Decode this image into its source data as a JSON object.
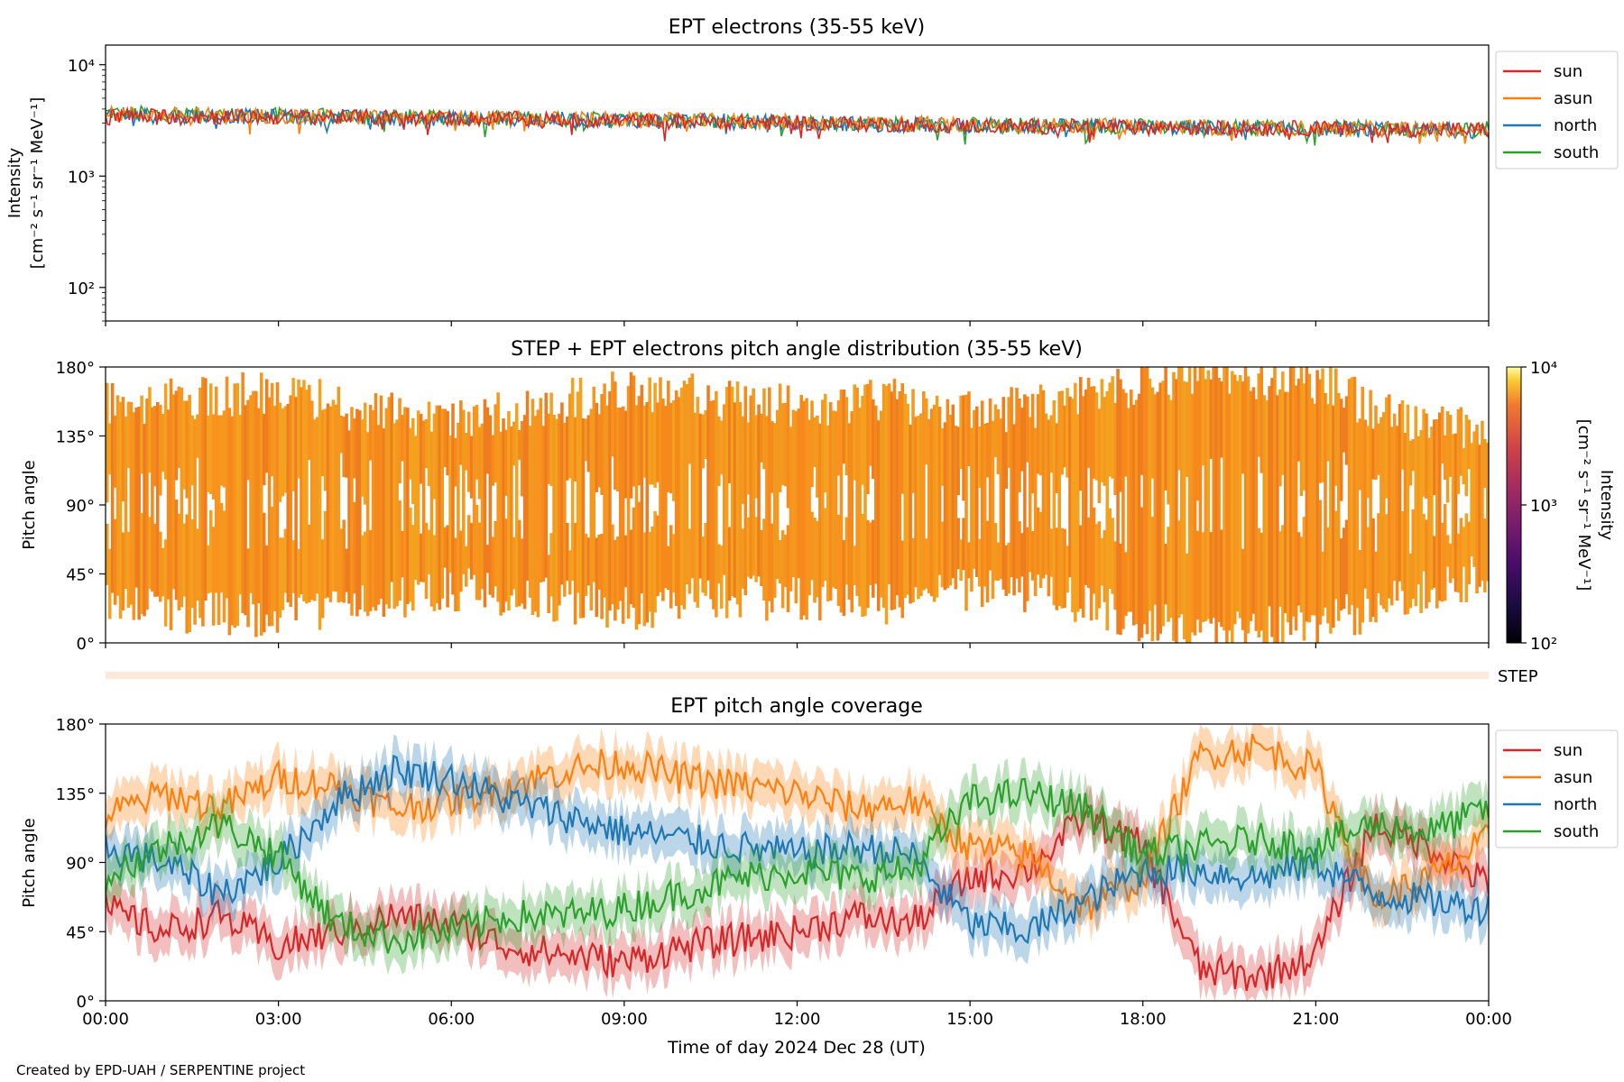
{
  "footer": "Created by EPD-UAH / SERPENTINE project",
  "colors": {
    "sun": "#d62728",
    "asun": "#ff7f0e",
    "north": "#1f77b4",
    "south": "#2ca02c",
    "pad": "#f7931e",
    "step_bar": "#fde8dc"
  },
  "chart_data": [
    {
      "type": "line",
      "title": "EPT electrons (35-55 keV)",
      "ylabel": [
        "Intensity",
        "[cm⁻² s⁻¹ sr⁻¹ MeV⁻¹]"
      ],
      "yscale": "log",
      "ylim": [
        50,
        15000
      ],
      "yticks": [
        100,
        1000,
        10000
      ],
      "ytick_labels": [
        "10²",
        "10³",
        "10⁴"
      ],
      "xlim_hours": [
        0,
        24
      ],
      "x_ticks_hours": [
        0,
        3,
        6,
        9,
        12,
        15,
        18,
        21,
        24
      ],
      "legend": "outside upper right",
      "series": [
        {
          "name": "sun",
          "x_hours": [
            0,
            2,
            4,
            6,
            8,
            10,
            12,
            14,
            16,
            18,
            20,
            22,
            24
          ],
          "values": [
            3500,
            3400,
            3400,
            3300,
            3200,
            3100,
            3000,
            2900,
            2800,
            2750,
            2700,
            2650,
            2600
          ]
        },
        {
          "name": "asun",
          "x_hours": [
            0,
            2,
            4,
            6,
            8,
            10,
            12,
            14,
            16,
            18,
            20,
            22,
            24
          ],
          "values": [
            3600,
            3500,
            3400,
            3300,
            3250,
            3150,
            3050,
            2950,
            2850,
            2800,
            2700,
            2650,
            2600
          ]
        },
        {
          "name": "north",
          "x_hours": [
            0,
            2,
            4,
            6,
            8,
            10,
            12,
            14,
            16,
            18,
            20,
            22,
            24
          ],
          "values": [
            3500,
            3450,
            3350,
            3300,
            3200,
            3150,
            3000,
            2900,
            2800,
            2750,
            2650,
            2600,
            2550
          ]
        },
        {
          "name": "south",
          "x_hours": [
            0,
            2,
            4,
            6,
            8,
            10,
            12,
            14,
            16,
            18,
            20,
            22,
            24
          ],
          "values": [
            3700,
            3550,
            3450,
            3350,
            3250,
            3150,
            3050,
            2950,
            2850,
            2800,
            2750,
            2700,
            2650
          ]
        }
      ]
    },
    {
      "type": "heatmap",
      "title": "STEP + EPT electrons pitch angle distribution (35-55 keV)",
      "ylabel": "Pitch angle",
      "ylim": [
        0,
        180
      ],
      "ytick_labels": [
        "0°",
        "45°",
        "90°",
        "135°",
        "180°"
      ],
      "xlim_hours": [
        0,
        24
      ],
      "colorbar": {
        "label": [
          "Intensity",
          "[cm⁻² s⁻¹ sr⁻¹ MeV⁻¹]"
        ],
        "scale": "log",
        "range": [
          100,
          10000
        ],
        "tick_labels": [
          "10²",
          "10³",
          "10⁴"
        ]
      },
      "coverage_hours": [
        0,
        1.5,
        3,
        4.5,
        6,
        7.5,
        9,
        10.5,
        12,
        13.5,
        15,
        16.5,
        18,
        19.5,
        21,
        22.5,
        24
      ],
      "coverage_min_deg": [
        25,
        20,
        18,
        28,
        35,
        30,
        22,
        30,
        28,
        25,
        35,
        30,
        15,
        8,
        10,
        30,
        45
      ],
      "coverage_max_deg": [
        155,
        160,
        165,
        150,
        145,
        155,
        165,
        160,
        155,
        160,
        150,
        155,
        170,
        175,
        170,
        145,
        140
      ],
      "typical_intensity": 3000,
      "step_strip_label": "STEP"
    },
    {
      "type": "line",
      "title": "EPT pitch angle coverage",
      "ylabel": "Pitch angle",
      "xlabel": "Time of day 2024 Dec 28 (UT)",
      "ylim": [
        0,
        180
      ],
      "ytick_labels": [
        "0°",
        "45°",
        "90°",
        "135°",
        "180°"
      ],
      "xlim_hours": [
        0,
        24
      ],
      "x_ticks_hours": [
        0,
        3,
        6,
        9,
        12,
        15,
        18,
        21,
        24
      ],
      "x_tick_labels": [
        "00:00",
        "03:00",
        "06:00",
        "09:00",
        "12:00",
        "15:00",
        "18:00",
        "21:00",
        "00:00"
      ],
      "legend": "outside upper right",
      "series": [
        {
          "name": "sun",
          "x_hours": [
            0,
            1,
            2,
            3,
            4,
            5,
            6,
            7,
            8,
            9,
            10,
            11,
            12,
            13,
            14,
            15,
            16,
            17,
            18,
            19,
            20,
            21,
            22,
            23,
            24
          ],
          "values": [
            60,
            45,
            55,
            35,
            45,
            55,
            50,
            35,
            30,
            25,
            35,
            40,
            45,
            55,
            50,
            80,
            85,
            120,
            100,
            20,
            15,
            30,
            115,
            100,
            75
          ]
        },
        {
          "name": "asun",
          "x_hours": [
            0,
            1,
            2,
            3,
            4,
            5,
            6,
            7,
            8,
            9,
            10,
            11,
            12,
            13,
            14,
            15,
            16,
            17,
            18,
            19,
            20,
            21,
            22,
            23,
            24
          ],
          "values": [
            120,
            135,
            125,
            145,
            140,
            125,
            130,
            140,
            150,
            155,
            145,
            140,
            135,
            125,
            130,
            100,
            95,
            60,
            80,
            160,
            165,
            150,
            65,
            80,
            105
          ]
        },
        {
          "name": "north",
          "x_hours": [
            0,
            1,
            2,
            3,
            4,
            5,
            6,
            7,
            8,
            9,
            10,
            11,
            12,
            13,
            14,
            15,
            16,
            17,
            18,
            19,
            20,
            21,
            22,
            23,
            24
          ],
          "values": [
            100,
            90,
            70,
            90,
            130,
            150,
            145,
            130,
            120,
            110,
            105,
            100,
            95,
            100,
            95,
            50,
            45,
            65,
            85,
            85,
            80,
            90,
            70,
            65,
            60
          ]
        },
        {
          "name": "south",
          "x_hours": [
            0,
            1,
            2,
            3,
            4,
            5,
            6,
            7,
            8,
            9,
            10,
            11,
            12,
            13,
            14,
            15,
            16,
            17,
            18,
            19,
            20,
            21,
            22,
            23,
            24
          ],
          "values": [
            80,
            100,
            115,
            95,
            50,
            40,
            45,
            55,
            55,
            60,
            70,
            80,
            85,
            80,
            85,
            130,
            135,
            125,
            95,
            100,
            105,
            100,
            115,
            110,
            125
          ]
        }
      ]
    }
  ]
}
